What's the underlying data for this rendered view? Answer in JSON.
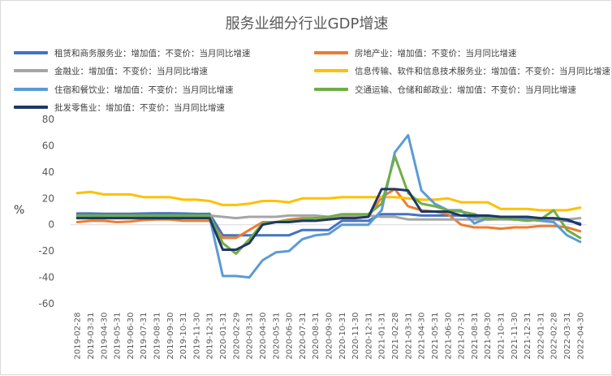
{
  "chart_data": {
    "type": "line",
    "title": "服务业细分行业GDP增速",
    "ylabel": "%",
    "xlabel": "",
    "ylim": [
      -60,
      80
    ],
    "yticks": [
      -60,
      -40,
      -20,
      0,
      20,
      40,
      60,
      80
    ],
    "grid": false,
    "legend": "top",
    "x": [
      "2019-02-28",
      "2019-03-31",
      "2019-04-30",
      "2019-05-31",
      "2019-06-30",
      "2019-07-31",
      "2019-08-31",
      "2019-09-30",
      "2019-10-31",
      "2019-11-30",
      "2019-12-31",
      "2020-01-31",
      "2020-02-29",
      "2020-03-31",
      "2020-04-30",
      "2020-05-31",
      "2020-06-30",
      "2020-07-31",
      "2020-08-31",
      "2020-09-30",
      "2020-10-31",
      "2020-11-30",
      "2020-12-31",
      "2021-01-31",
      "2021-02-28",
      "2021-03-31",
      "2021-04-30",
      "2021-05-31",
      "2021-06-30",
      "2021-07-31",
      "2021-08-31",
      "2021-09-30",
      "2021-10-31",
      "2021-11-30",
      "2021-12-31",
      "2022-01-31",
      "2022-02-28",
      "2022-03-31",
      "2022-04-30"
    ],
    "xtick_labels": [
      "2019-02-28",
      "2019-03-31",
      "2019-04-30",
      "2019-05-31",
      "2019-06-30",
      "2019-07-31",
      "2019-08-31",
      "2019-09-30",
      "2019-10-31",
      "2019-11-30",
      "2019-12-31",
      "2020-01-31",
      "2020-02-29",
      "2020-03-31",
      "2020-04-30",
      "2020-05-31",
      "2020-06-30",
      "2020-07-31",
      "2020-08-31",
      "2020-09-30",
      "2020-10-31",
      "2020-11-30",
      "2020-12-31",
      "2021-01-31",
      "2021-02-28",
      "2021-03-31",
      "2021-04-30",
      "2021-05-31",
      "2021-06-30",
      "2021-07-31",
      "2021-08-31",
      "2021-09-30",
      "2021-10-31",
      "2021-11-30",
      "2021-12-31",
      "2022-01-31",
      "2022-02-28",
      "2022-03-31",
      "2022-04-30"
    ],
    "series": [
      {
        "name": "租赁和商务服务业：增加值：不变价：当月同比增速",
        "color": "#4472c4",
        "values": [
          8.5,
          8.5,
          8.3,
          8.3,
          8.3,
          8.5,
          8.7,
          8.7,
          8.5,
          8.2,
          8.3,
          -8,
          -8,
          -8,
          -8,
          -8,
          -8,
          -4,
          -4,
          -4,
          3,
          3,
          3,
          8,
          8,
          8,
          7,
          7,
          7,
          7,
          6,
          6,
          6,
          5,
          5,
          4,
          4,
          3,
          1
        ]
      },
      {
        "name": "房地产业：增加值：不变价：当月同比增速",
        "color": "#ed7d31",
        "values": [
          2,
          3,
          3,
          2,
          2.5,
          3.5,
          4,
          4,
          3,
          3,
          3,
          -10,
          -10,
          -4,
          2,
          2,
          4,
          5,
          5,
          5,
          6,
          6,
          6,
          21,
          27,
          14,
          11,
          10,
          8,
          0,
          -2,
          -2,
          -3,
          -2,
          -2,
          -1,
          -1,
          -2,
          -5
        ]
      },
      {
        "name": "金融业：增加值：不变价：当月同比增速",
        "color": "#a5a5a5",
        "values": [
          7,
          7,
          7,
          7,
          7,
          7,
          7,
          7,
          7,
          7,
          7,
          6,
          5,
          6,
          6,
          6,
          7,
          7,
          7,
          6,
          7,
          7,
          7,
          6,
          6,
          4,
          4,
          4,
          4,
          4,
          4,
          4,
          4,
          4,
          4,
          4,
          4,
          4,
          5
        ]
      },
      {
        "name": "信息传输、软件和信息技术服务业：增加值：不变价：当月同比增速",
        "color": "#ffc000",
        "values": [
          24,
          25,
          23,
          23,
          23,
          21,
          21,
          21,
          19,
          19,
          18,
          15,
          15,
          16,
          18,
          18,
          17,
          20,
          20,
          20,
          21,
          21,
          21,
          21,
          21,
          20,
          19,
          19,
          20,
          17,
          17,
          17,
          12,
          12,
          12,
          11,
          11,
          11,
          13
        ]
      },
      {
        "name": "住宿和餐饮业：增加值：不变价：当月同比增速",
        "color": "#5b9bd5",
        "values": [
          6,
          6,
          6,
          6,
          6,
          6,
          6,
          6,
          6,
          6,
          6,
          -39,
          -39,
          -40,
          -27,
          -21,
          -20,
          -11,
          -8,
          -7,
          0,
          0,
          0,
          11,
          55,
          68,
          26,
          16,
          11,
          11,
          1,
          5,
          5,
          4,
          4,
          3,
          2,
          -8,
          -13
        ]
      },
      {
        "name": "交通运输、仓储和邮政业：增加值：不变价：当月同比增速",
        "color": "#70ad47",
        "values": [
          7,
          7,
          7,
          7,
          7,
          7,
          7,
          7,
          7,
          7,
          7,
          -14,
          -22,
          -11,
          1,
          2,
          3,
          4,
          5,
          6,
          8,
          8,
          8,
          16,
          52,
          24,
          16,
          14,
          11,
          10,
          8,
          4,
          5,
          4,
          3,
          4,
          11,
          -4,
          -10
        ]
      },
      {
        "name": "批发零售业：增加值：不变价：当月同比增速",
        "color": "#1f3864",
        "values": [
          5,
          5,
          5,
          5,
          5,
          5,
          5,
          5,
          5,
          5,
          5,
          -19,
          -19,
          -14,
          0,
          2,
          2,
          3,
          3,
          4,
          5,
          5,
          6,
          27,
          27,
          26,
          10,
          10,
          10,
          7,
          7,
          7,
          6,
          6,
          6,
          5,
          5,
          4,
          0
        ]
      }
    ]
  }
}
